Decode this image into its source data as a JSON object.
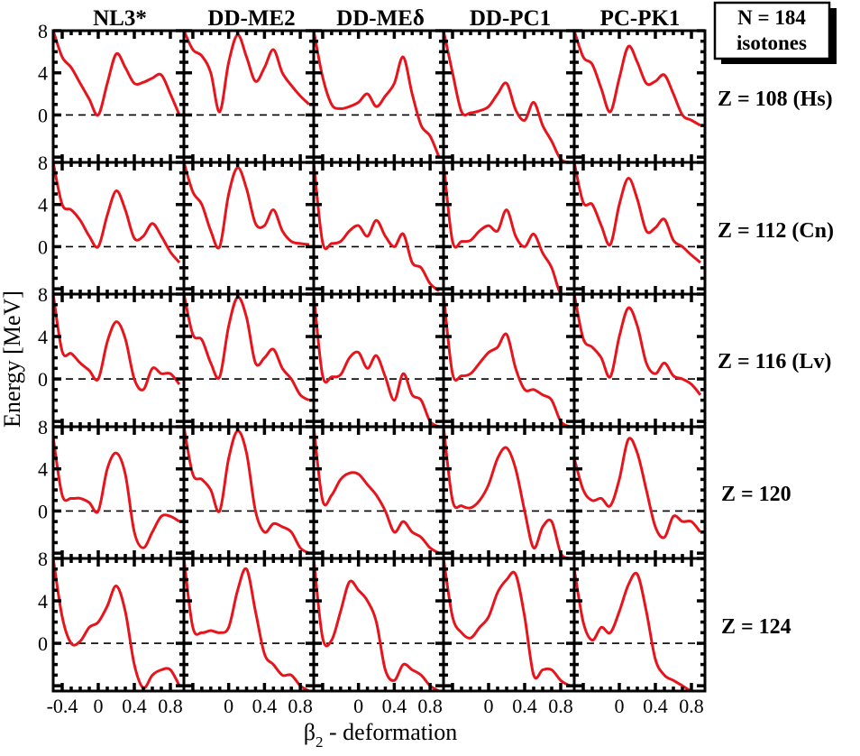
{
  "chart_data": {
    "type": "line",
    "title": "",
    "xlabel_symbol": "β",
    "xlabel_subscript": "2",
    "xlabel_rest": " - deformation",
    "ylabel": "Energy  [MeV]",
    "xlim": [
      -0.5,
      0.95
    ],
    "ylim": [
      -4.5,
      8
    ],
    "x_ticks": [
      -0.4,
      0,
      0.4,
      0.8
    ],
    "x_tick_labels": [
      "-0.4",
      "0",
      "0.4",
      "0.8"
    ],
    "y_ticks": [
      0,
      4,
      8
    ],
    "y_tick_labels": [
      "0",
      "4",
      "8"
    ],
    "reference_line": 0,
    "line_color": "#e8141c",
    "columns": [
      "NL3*",
      "DD-ME2",
      "DD-MEδ",
      "DD-PC1",
      "PC-PK1"
    ],
    "rows": [
      "Z = 108 (Hs)",
      "Z = 112 (Cn)",
      "Z = 116 (Lv)",
      "Z = 120",
      "Z = 124"
    ],
    "legend_box": [
      "N = 184",
      "isotones"
    ],
    "x": [
      -0.5,
      -0.4,
      -0.3,
      -0.2,
      -0.1,
      0.0,
      0.1,
      0.2,
      0.3,
      0.4,
      0.5,
      0.6,
      0.7,
      0.8,
      0.9
    ],
    "panels": [
      [
        {
          "name": "NL3*",
          "values": [
            8.0,
            5.5,
            4.5,
            3.0,
            1.5,
            0.0,
            3.0,
            5.8,
            4.5,
            3.0,
            3.1,
            3.5,
            3.8,
            2.0,
            0.0
          ]
        },
        {
          "name": "DD-ME2",
          "values": [
            8.0,
            6.2,
            5.6,
            4.0,
            0.3,
            5.0,
            7.6,
            5.5,
            3.2,
            4.5,
            6.2,
            4.0,
            2.8,
            1.8,
            1.0
          ]
        },
        {
          "name": "DD-MEδ",
          "values": [
            8.0,
            3.6,
            1.0,
            0.6,
            0.8,
            1.2,
            2.0,
            0.8,
            1.8,
            3.0,
            5.5,
            2.0,
            -1.0,
            -2.0,
            -4.0
          ]
        },
        {
          "name": "DD-PC1",
          "values": [
            8.0,
            4.0,
            0.3,
            0.2,
            0.4,
            0.8,
            2.0,
            3.0,
            0.5,
            -0.5,
            1.2,
            -1.0,
            -2.5,
            -4.2,
            -4.5
          ]
        },
        {
          "name": "PC-PK1",
          "values": [
            8.0,
            5.5,
            4.8,
            2.5,
            0.3,
            3.5,
            6.5,
            5.0,
            3.0,
            3.2,
            3.8,
            2.0,
            0.0,
            -0.5,
            -1.0
          ]
        }
      ],
      [
        {
          "name": "NL3*",
          "values": [
            8.0,
            4.0,
            3.5,
            2.5,
            1.0,
            0.0,
            3.0,
            5.3,
            3.5,
            0.8,
            1.0,
            2.2,
            1.0,
            -0.5,
            -1.5
          ]
        },
        {
          "name": "DD-ME2",
          "values": [
            8.0,
            5.2,
            4.0,
            1.5,
            0.0,
            5.0,
            7.5,
            5.5,
            2.2,
            2.0,
            3.5,
            1.5,
            0.5,
            0.3,
            0.2
          ]
        },
        {
          "name": "DD-MEδ",
          "values": [
            8.0,
            0.4,
            0.3,
            0.5,
            1.5,
            2.0,
            1.0,
            2.5,
            1.0,
            0.0,
            1.2,
            -1.5,
            -2.0,
            -3.5,
            -4.2
          ]
        },
        {
          "name": "DD-PC1",
          "values": [
            8.0,
            0.5,
            0.5,
            0.6,
            1.5,
            2.0,
            1.5,
            3.5,
            1.0,
            0.0,
            1.2,
            -0.6,
            -2.0,
            -4.5,
            -4.5
          ]
        },
        {
          "name": "PC-PK1",
          "values": [
            8.0,
            4.2,
            4.0,
            2.0,
            0.2,
            4.0,
            6.5,
            4.5,
            1.5,
            1.8,
            2.6,
            0.6,
            0.0,
            -0.8,
            -1.5
          ]
        }
      ],
      [
        {
          "name": "NL3*",
          "values": [
            8.0,
            2.6,
            2.4,
            1.5,
            0.8,
            0.0,
            3.5,
            5.4,
            3.8,
            0.0,
            -1.0,
            1.0,
            0.5,
            0.5,
            -0.5
          ]
        },
        {
          "name": "DD-ME2",
          "values": [
            8.0,
            4.2,
            3.7,
            1.5,
            0.2,
            5.0,
            7.7,
            5.8,
            1.5,
            2.0,
            2.8,
            1.0,
            0.0,
            -1.5,
            -2.0
          ]
        },
        {
          "name": "DD-MEδ",
          "values": [
            8.0,
            0.3,
            0.2,
            0.4,
            2.0,
            2.5,
            1.0,
            2.2,
            0.2,
            -2.0,
            0.5,
            -1.5,
            -2.0,
            -4.0,
            -4.5
          ]
        },
        {
          "name": "DD-PC1",
          "values": [
            8.0,
            0.5,
            0.3,
            0.5,
            1.5,
            2.5,
            3.0,
            4.2,
            1.0,
            -1.0,
            -1.0,
            -1.5,
            -2.0,
            -4.0,
            -4.5
          ]
        },
        {
          "name": "PC-PK1",
          "values": [
            8.0,
            3.8,
            3.0,
            2.0,
            0.2,
            4.0,
            6.7,
            5.0,
            1.5,
            0.5,
            1.5,
            0.3,
            0.0,
            -0.5,
            -1.5
          ]
        }
      ],
      [
        {
          "name": "NL3*",
          "values": [
            7.0,
            1.5,
            1.2,
            1.2,
            0.8,
            0.0,
            4.0,
            5.5,
            3.5,
            -2.0,
            -3.5,
            -2.0,
            -0.5,
            -0.5,
            -1.0
          ]
        },
        {
          "name": "DD-ME2",
          "values": [
            8.0,
            3.5,
            3.0,
            2.0,
            0.0,
            5.0,
            7.6,
            5.5,
            0.0,
            -2.0,
            -1.2,
            -1.5,
            -2.0,
            -3.5,
            -4.0
          ]
        },
        {
          "name": "DD-MEδ",
          "values": [
            8.0,
            1.0,
            1.5,
            3.0,
            3.6,
            3.5,
            2.5,
            1.5,
            0.0,
            -2.0,
            -1.0,
            -2.0,
            -2.5,
            -3.5,
            -4.0
          ]
        },
        {
          "name": "DD-PC1",
          "values": [
            8.0,
            1.0,
            0.5,
            0.3,
            1.0,
            2.5,
            5.0,
            6.0,
            4.0,
            0.0,
            -3.5,
            -1.5,
            -1.0,
            -4.0,
            -4.5
          ]
        },
        {
          "name": "PC-PK1",
          "values": [
            5.0,
            2.0,
            1.0,
            1.2,
            0.5,
            3.0,
            6.8,
            5.5,
            2.0,
            -1.5,
            -2.5,
            -0.5,
            -1.0,
            -1.0,
            -2.0
          ]
        }
      ],
      [
        {
          "name": "NL3*",
          "values": [
            8.0,
            2.5,
            0.0,
            0.2,
            1.5,
            2.0,
            3.5,
            5.4,
            3.0,
            -2.0,
            -4.2,
            -3.0,
            -2.5,
            -2.5,
            -4.0
          ]
        },
        {
          "name": "DD-ME2",
          "values": [
            8.0,
            1.5,
            1.0,
            1.2,
            1.0,
            1.5,
            5.0,
            7.0,
            3.0,
            -1.0,
            -2.0,
            -3.0,
            -3.0,
            -4.0,
            -4.5
          ]
        },
        {
          "name": "DD-MEδ",
          "values": [
            8.0,
            0.5,
            0.3,
            3.0,
            5.8,
            5.0,
            4.0,
            2.0,
            -2.5,
            -3.5,
            -2.0,
            -2.5,
            -3.0,
            -4.0,
            -4.5
          ]
        },
        {
          "name": "DD-PC1",
          "values": [
            8.0,
            2.5,
            1.0,
            0.5,
            1.5,
            2.5,
            4.8,
            6.0,
            6.5,
            2.5,
            -3.0,
            -2.5,
            -2.5,
            -3.5,
            -4.0
          ]
        },
        {
          "name": "PC-PK1",
          "values": [
            7.0,
            2.0,
            0.3,
            1.5,
            1.0,
            3.0,
            5.5,
            6.5,
            3.0,
            -1.5,
            -3.0,
            -3.5,
            -4.0,
            -4.5,
            -4.5
          ]
        }
      ]
    ]
  }
}
